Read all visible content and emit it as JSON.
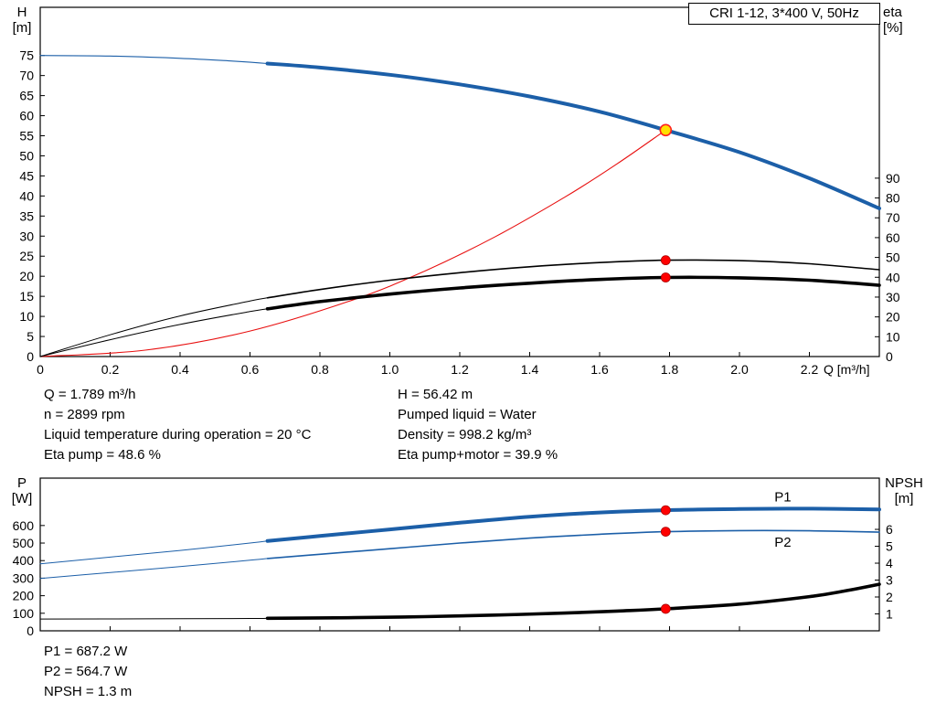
{
  "title_box": "CRI 1-12, 3*400 V, 50Hz",
  "info_top": {
    "left": [
      "Q = 1.789 m³/h",
      "n = 2899 rpm",
      "Liquid temperature during operation = 20 °C",
      "Eta pump = 48.6 %"
    ],
    "right": [
      "H = 56.42 m",
      "Pumped liquid = Water",
      "Density = 998.2 kg/m³",
      "Eta pump+motor = 39.9 %"
    ]
  },
  "info_bottom": [
    "P1 = 687.2 W",
    "P2 = 564.7 W",
    "NPSH = 1.3 m"
  ],
  "colors": {
    "curve_blue": "#1c5fa8",
    "curve_black": "#000000",
    "system_red": "#e81010",
    "dot_red": "#ff0000",
    "dot_red_edge": "#aa0000",
    "op_yellow": "#ffe000",
    "op_ring_red": "#ff2020"
  },
  "chart_data": [
    {
      "id": "head",
      "type": "line",
      "title": "CRI 1-12, 3*400 V, 50Hz",
      "x_label": "Q [m³/h]",
      "x_range": [
        0,
        2.4
      ],
      "x_ticks": [
        "0",
        "0.2",
        "0.4",
        "0.6",
        "0.8",
        "1.0",
        "1.2",
        "1.4",
        "1.6",
        "1.8",
        "2.0",
        "2.2"
      ],
      "left_axis": {
        "label": "H",
        "unit": "[m]",
        "range": [
          0,
          87
        ],
        "ticks": [
          0,
          5,
          10,
          15,
          20,
          25,
          30,
          35,
          40,
          45,
          50,
          55,
          60,
          65,
          70,
          75
        ]
      },
      "right_axis": {
        "label": "eta",
        "unit": "[%]",
        "range": [
          0,
          176.2
        ],
        "ticks": [
          0,
          10,
          20,
          30,
          40,
          50,
          60,
          70,
          80,
          90
        ]
      },
      "series": [
        {
          "name": "pump-curve-lead",
          "axis": "left",
          "color": "#1c5fa8",
          "width": 1.1,
          "points": [
            [
              0,
              75
            ],
            [
              0.2,
              74.85
            ],
            [
              0.4,
              74.3
            ],
            [
              0.55,
              73.6
            ],
            [
              0.65,
              73.0
            ]
          ]
        },
        {
          "name": "pump-curve",
          "axis": "left",
          "color": "#1c5fa8",
          "width": 4,
          "points": [
            [
              0.65,
              73.0
            ],
            [
              0.8,
              72.0
            ],
            [
              1.0,
              70.2
            ],
            [
              1.2,
              67.8
            ],
            [
              1.4,
              64.8
            ],
            [
              1.6,
              61.0
            ],
            [
              1.789,
              56.42
            ],
            [
              2.0,
              50.9
            ],
            [
              2.2,
              44.4
            ],
            [
              2.4,
              36.9
            ]
          ]
        },
        {
          "name": "system-curve",
          "axis": "left",
          "color": "#e81010",
          "width": 1.1,
          "points": [
            [
              0,
              0
            ],
            [
              0.3,
              1.59
            ],
            [
              0.6,
              6.35
            ],
            [
              0.9,
              14.28
            ],
            [
              1.1,
              21.3
            ],
            [
              1.3,
              29.8
            ],
            [
              1.5,
              39.7
            ],
            [
              1.65,
              48.0
            ],
            [
              1.789,
              56.42
            ]
          ]
        },
        {
          "name": "eta-pump-lead",
          "axis": "right",
          "color": "#000000",
          "width": 1,
          "points": [
            [
              0,
              0
            ],
            [
              0.2,
              11
            ],
            [
              0.4,
              20.5
            ],
            [
              0.6,
              28
            ],
            [
              0.65,
              29.6
            ]
          ]
        },
        {
          "name": "eta-pump-curve",
          "axis": "right",
          "color": "#000000",
          "width": 1.6,
          "points": [
            [
              0.65,
              29.6
            ],
            [
              0.8,
              33.8
            ],
            [
              1.0,
              38.5
            ],
            [
              1.2,
              42.3
            ],
            [
              1.4,
              45.3
            ],
            [
              1.6,
              47.4
            ],
            [
              1.789,
              48.6
            ],
            [
              2.0,
              48.4
            ],
            [
              2.2,
              46.8
            ],
            [
              2.4,
              43.8
            ]
          ]
        },
        {
          "name": "eta-pump-motor-lead",
          "axis": "right",
          "color": "#000000",
          "width": 1,
          "points": [
            [
              0,
              0
            ],
            [
              0.2,
              8.5
            ],
            [
              0.4,
              16.2
            ],
            [
              0.6,
              22.7
            ],
            [
              0.65,
              24.1
            ]
          ]
        },
        {
          "name": "eta-pump-motor-curve",
          "axis": "right",
          "color": "#000000",
          "width": 3.6,
          "points": [
            [
              0.65,
              24.1
            ],
            [
              0.8,
              27.7
            ],
            [
              1.0,
              31.5
            ],
            [
              1.2,
              34.6
            ],
            [
              1.4,
              37.0
            ],
            [
              1.6,
              38.9
            ],
            [
              1.789,
              39.9
            ],
            [
              2.0,
              39.7
            ],
            [
              2.2,
              38.5
            ],
            [
              2.4,
              36.0
            ]
          ]
        }
      ],
      "labels": [],
      "markers": [
        {
          "name": "eta-pump-point",
          "axis": "right",
          "x": 1.789,
          "value": 48.6,
          "r": 5,
          "fill": "#ff0000",
          "stroke": "#aa0000",
          "stroke_width": 0.8,
          "interactable": false
        },
        {
          "name": "eta-pump-motor-point",
          "axis": "right",
          "x": 1.789,
          "value": 39.9,
          "r": 5,
          "fill": "#ff0000",
          "stroke": "#aa0000",
          "stroke_width": 0.8,
          "interactable": false
        },
        {
          "name": "duty-point",
          "axis": "left",
          "x": 1.789,
          "value": 56.42,
          "r": 6,
          "fill": "#ffe000",
          "stroke": "#ff2020",
          "stroke_width": 1.6,
          "interactable": true
        }
      ]
    },
    {
      "id": "power",
      "type": "line",
      "title": "",
      "x_label": "",
      "x_range": [
        0,
        2.4
      ],
      "x_ticks": [
        "0",
        "0.2",
        "0.4",
        "0.6",
        "0.8",
        "1.0",
        "1.2",
        "1.4",
        "1.6",
        "1.8",
        "2.0",
        "2.2"
      ],
      "left_axis": {
        "label": "P",
        "unit": "[W]",
        "range": [
          0,
          870
        ],
        "ticks": [
          0,
          100,
          200,
          300,
          400,
          500,
          600
        ]
      },
      "right_axis": {
        "label": "NPSH",
        "unit": "[m]",
        "range": [
          0,
          9.03
        ],
        "ticks": [
          1,
          2,
          3,
          4,
          5,
          6
        ]
      },
      "series": [
        {
          "name": "p1-curve-lead",
          "axis": "left",
          "color": "#1c5fa8",
          "width": 1,
          "points": [
            [
              0,
              382
            ],
            [
              0.2,
              420
            ],
            [
              0.4,
              458
            ],
            [
              0.6,
              500
            ],
            [
              0.65,
              512
            ]
          ]
        },
        {
          "name": "p1-curve",
          "axis": "left",
          "color": "#1c5fa8",
          "width": 4,
          "points": [
            [
              0.65,
              512
            ],
            [
              0.8,
              540
            ],
            [
              1.0,
              578
            ],
            [
              1.2,
              616
            ],
            [
              1.4,
              650
            ],
            [
              1.6,
              674
            ],
            [
              1.789,
              687.2
            ],
            [
              2.0,
              694
            ],
            [
              2.2,
              696
            ],
            [
              2.4,
              692
            ]
          ]
        },
        {
          "name": "p2-curve-lead",
          "axis": "left",
          "color": "#1c5fa8",
          "width": 1,
          "points": [
            [
              0,
              298
            ],
            [
              0.2,
              332
            ],
            [
              0.4,
              366
            ],
            [
              0.6,
              402
            ],
            [
              0.65,
              412
            ]
          ]
        },
        {
          "name": "p2-curve",
          "axis": "left",
          "color": "#1c5fa8",
          "width": 1.6,
          "points": [
            [
              0.65,
              412
            ],
            [
              0.8,
              436
            ],
            [
              1.0,
              468
            ],
            [
              1.2,
              500
            ],
            [
              1.4,
              528
            ],
            [
              1.6,
              550
            ],
            [
              1.789,
              564.7
            ],
            [
              2.0,
              571
            ],
            [
              2.2,
              570
            ],
            [
              2.4,
              562
            ]
          ]
        },
        {
          "name": "npsh-curve-lead",
          "axis": "right",
          "color": "#000000",
          "width": 1,
          "points": [
            [
              0,
              0.7
            ],
            [
              0.3,
              0.71
            ],
            [
              0.6,
              0.73
            ],
            [
              0.65,
              0.74
            ]
          ]
        },
        {
          "name": "npsh-curve",
          "axis": "right",
          "color": "#000000",
          "width": 3.6,
          "points": [
            [
              0.65,
              0.74
            ],
            [
              0.9,
              0.78
            ],
            [
              1.1,
              0.84
            ],
            [
              1.3,
              0.93
            ],
            [
              1.5,
              1.05
            ],
            [
              1.65,
              1.17
            ],
            [
              1.789,
              1.3
            ],
            [
              2.0,
              1.58
            ],
            [
              2.2,
              2.02
            ],
            [
              2.3,
              2.35
            ],
            [
              2.4,
              2.75
            ]
          ]
        }
      ],
      "labels": [
        {
          "name": "p1-series-label",
          "text": "P1",
          "axis": "left",
          "x": 2.1,
          "value": 762,
          "color": "#1c5fa8"
        },
        {
          "name": "p2-series-label",
          "text": "P2",
          "axis": "left",
          "x": 2.1,
          "value": 505,
          "color": "#1c5fa8"
        }
      ],
      "markers": [
        {
          "name": "p1-point",
          "axis": "left",
          "x": 1.789,
          "value": 687.2,
          "r": 5,
          "fill": "#ff0000",
          "stroke": "#aa0000",
          "stroke_width": 0.8,
          "interactable": false
        },
        {
          "name": "p2-point",
          "axis": "left",
          "x": 1.789,
          "value": 564.7,
          "r": 5,
          "fill": "#ff0000",
          "stroke": "#aa0000",
          "stroke_width": 0.8,
          "interactable": false
        },
        {
          "name": "npsh-point",
          "axis": "right",
          "x": 1.789,
          "value": 1.3,
          "r": 5,
          "fill": "#ff0000",
          "stroke": "#aa0000",
          "stroke_width": 0.8,
          "interactable": false
        }
      ]
    }
  ]
}
